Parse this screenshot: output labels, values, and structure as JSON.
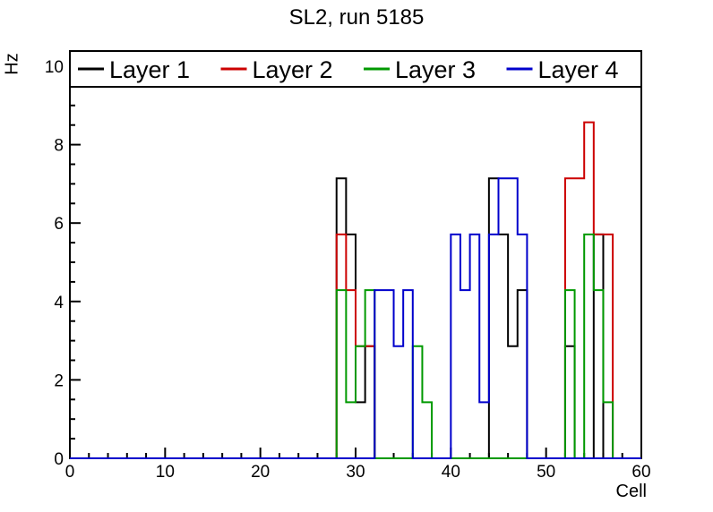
{
  "chart_data": {
    "type": "step-histogram",
    "title": "SL2, run 5185",
    "xlabel": "Cell",
    "ylabel": "Hz",
    "xlim": [
      0,
      60
    ],
    "ylim": [
      0,
      10
    ],
    "n_bins": 60,
    "x_major_ticks": [
      0,
      10,
      20,
      30,
      40,
      50,
      60
    ],
    "x_minor_step": 2,
    "y_major_ticks": [
      0,
      2,
      4,
      6,
      8,
      10
    ],
    "y_minor_step": 0.5,
    "grid": "off",
    "legend_position": "top",
    "series": [
      {
        "name": "Layer 1",
        "color": "#000000",
        "bins": {
          "28": 7.14,
          "29": 5.71,
          "30": 1.43,
          "31": 2.86,
          "44": 7.14,
          "45": 5.71,
          "46": 2.86,
          "47": 4.29,
          "52": 2.86,
          "55": 5.71
        }
      },
      {
        "name": "Layer 2",
        "color": "#cc0000",
        "bins": {
          "28": 5.71,
          "29": 4.29,
          "30": 2.86,
          "31": 2.86,
          "52": 7.14,
          "53": 7.14,
          "54": 8.57,
          "55": 5.71,
          "56": 5.71
        }
      },
      {
        "name": "Layer 3",
        "color": "#009900",
        "bins": {
          "28": 4.29,
          "29": 1.43,
          "30": 2.86,
          "31": 4.29,
          "36": 2.86,
          "37": 1.43,
          "52": 4.29,
          "54": 5.71,
          "55": 4.29,
          "56": 1.43
        }
      },
      {
        "name": "Layer 4",
        "color": "#0000cc",
        "bins": {
          "32": 4.29,
          "33": 4.29,
          "34": 2.86,
          "35": 4.29,
          "40": 5.71,
          "41": 4.29,
          "42": 5.71,
          "43": 1.43,
          "44": 5.71,
          "45": 7.14,
          "46": 7.14,
          "47": 5.71
        }
      }
    ]
  }
}
